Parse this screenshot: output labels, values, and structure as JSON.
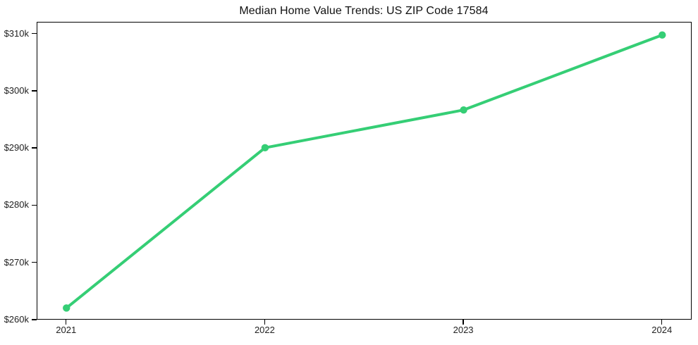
{
  "window": {
    "background_color": "#ffffff"
  },
  "chart_data": {
    "type": "line",
    "title": "Median Home Value Trends: US ZIP Code 17584",
    "x": [
      2021,
      2022,
      2023,
      2024
    ],
    "x_tick_labels": [
      "2021",
      "2022",
      "2023",
      "2024"
    ],
    "values": [
      262.1,
      290.1,
      296.7,
      309.8
    ],
    "values_unit": "USD thousands",
    "y_ticks": [
      260,
      270,
      280,
      290,
      300,
      310
    ],
    "y_tick_labels": [
      "$260k",
      "$270k",
      "$280k",
      "$290k",
      "$300k",
      "$310k"
    ],
    "xlim": [
      2020.85,
      2024.15
    ],
    "ylim": [
      260,
      312.1
    ],
    "grid": false,
    "legend": "none",
    "line_color": "#35ce75",
    "marker": "circle",
    "line_width": 4,
    "marker_radius": 5.2,
    "axis_color": "#000000",
    "title_color": "#111111",
    "tick_color": "#222222"
  }
}
